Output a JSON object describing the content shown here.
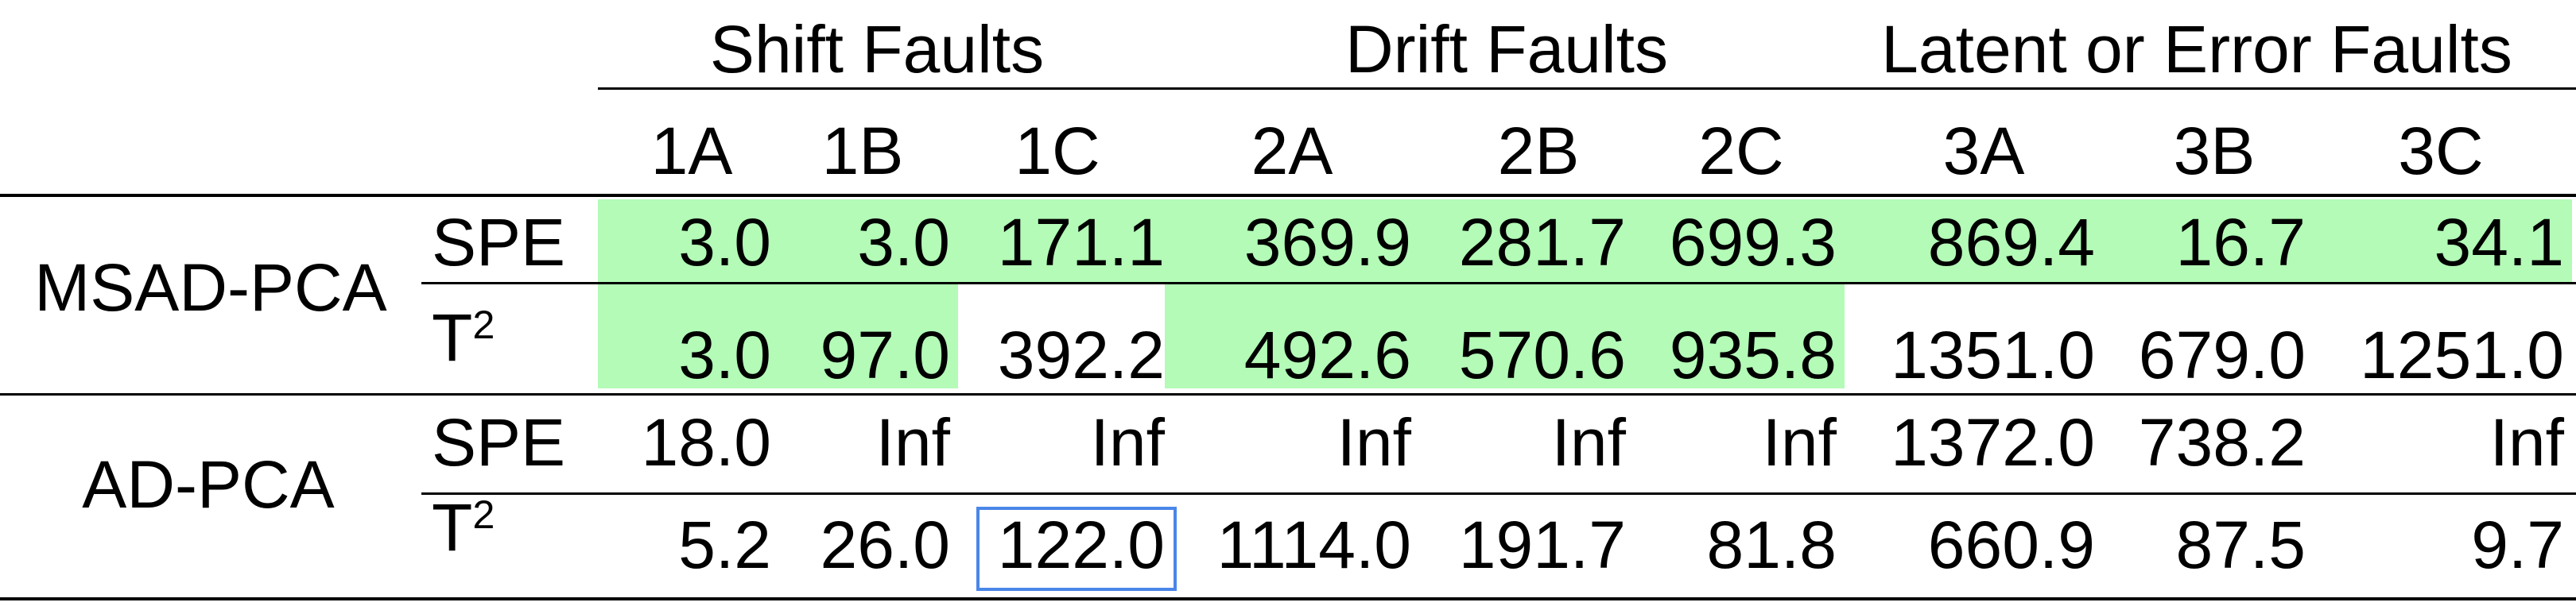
{
  "table": {
    "group_headers": [
      "Shift Faults",
      "Drift Faults",
      "Latent or Error Faults"
    ],
    "fault_ids": [
      "1A",
      "1B",
      "1C",
      "2A",
      "2B",
      "2C",
      "3A",
      "3B",
      "3C"
    ],
    "methods": [
      {
        "name": "MSAD-PCA",
        "rows": [
          {
            "stat": "SPE",
            "stat_base": "SPE",
            "stat_sup": "",
            "values": [
              "3.0",
              "3.0",
              "171.1",
              "369.9",
              "281.7",
              "699.3",
              "869.4",
              "16.7",
              "34.1"
            ],
            "highlighted": [
              true,
              true,
              true,
              true,
              true,
              true,
              true,
              true,
              true
            ]
          },
          {
            "stat": "T2",
            "stat_base": "T",
            "stat_sup": "2",
            "values": [
              "3.0",
              "97.0",
              "392.2",
              "492.6",
              "570.6",
              "935.8",
              "1351.0",
              "679.0",
              "1251.0"
            ],
            "highlighted": [
              true,
              true,
              false,
              true,
              true,
              true,
              false,
              false,
              false
            ]
          }
        ]
      },
      {
        "name": "AD-PCA",
        "rows": [
          {
            "stat": "SPE",
            "stat_base": "SPE",
            "stat_sup": "",
            "values": [
              "18.0",
              "Inf",
              "Inf",
              "Inf",
              "Inf",
              "Inf",
              "1372.0",
              "738.2",
              "Inf"
            ],
            "highlighted": [
              false,
              false,
              false,
              false,
              false,
              false,
              false,
              false,
              false
            ]
          },
          {
            "stat": "T2",
            "stat_base": "T",
            "stat_sup": "2",
            "values": [
              "5.2",
              "26.0",
              "122.0",
              "1114.0",
              "191.7",
              "81.8",
              "660.9",
              "87.5",
              "9.7"
            ],
            "highlighted": [
              false,
              false,
              false,
              false,
              false,
              false,
              false,
              false,
              false
            ]
          }
        ]
      }
    ],
    "highlight_color": "#b3fbb7",
    "selection_color": "#4a86e8",
    "selected_cell": {
      "method_index": 1,
      "row_index": 1,
      "column_index": 2
    }
  }
}
